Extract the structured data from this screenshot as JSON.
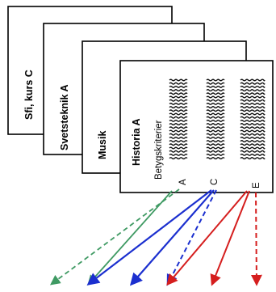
{
  "stack": {
    "sheets": [
      {
        "title": "Sfi, kurs C"
      },
      {
        "title": "Svetsteknik A"
      },
      {
        "title": "Musik"
      },
      {
        "title": "Historia A"
      }
    ],
    "front_sheet": {
      "subtitle": "Betygskriterier",
      "grade_labels": [
        "A",
        "C",
        "E"
      ]
    }
  },
  "colors": {
    "grade_a": "#3f9a63",
    "grade_c": "#1b2fcf",
    "grade_e": "#d51e1e",
    "sheet_border": "#000000",
    "sheet_fill": "#ffffff"
  }
}
